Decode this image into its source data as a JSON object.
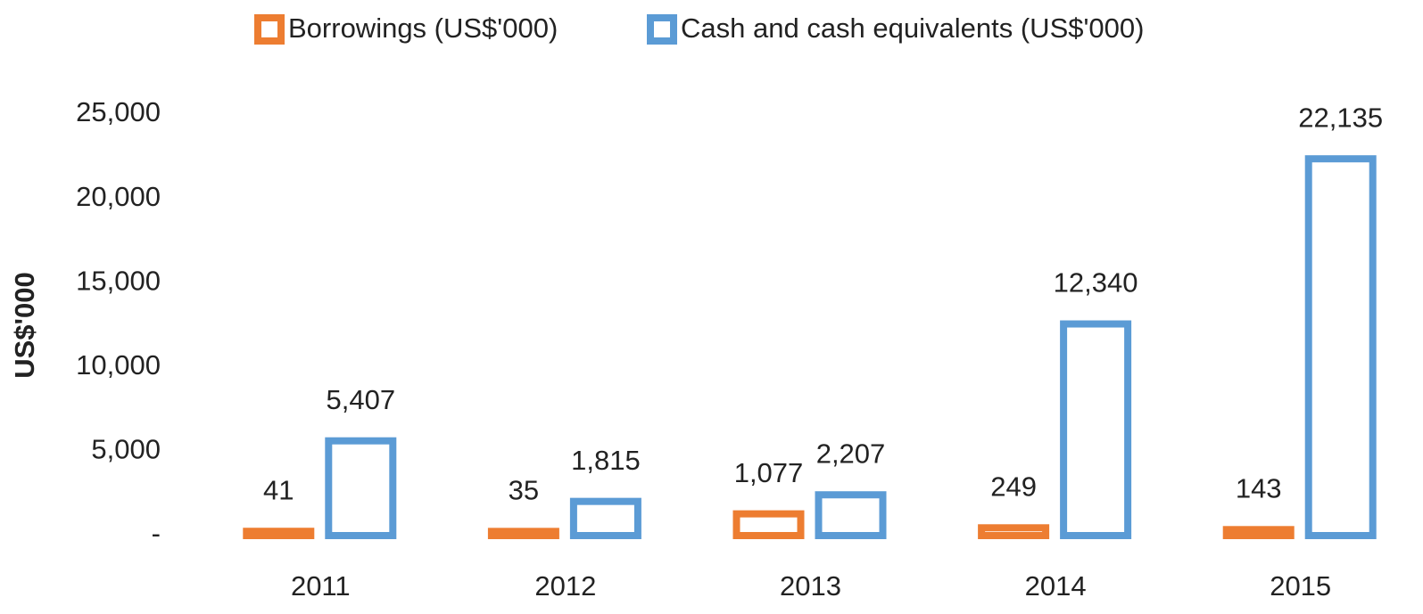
{
  "chart_data": {
    "type": "bar",
    "y_label": "US$'000",
    "categories": [
      "2011",
      "2012",
      "2013",
      "2014",
      "2015"
    ],
    "series": [
      {
        "name": "Borrowings (US$'000)",
        "color": "#ed7d31",
        "values": [
          41,
          35,
          1077,
          249,
          143
        ],
        "value_labels": [
          "41",
          "35",
          "1,077",
          "249",
          "143"
        ]
      },
      {
        "name": "Cash and cash equivalents (US$'000)",
        "color": "#5b9bd5",
        "values": [
          5407,
          1815,
          2207,
          12340,
          22135
        ],
        "value_labels": [
          "5,407",
          "1,815",
          "2,207",
          "12,340",
          "22,135"
        ]
      }
    ],
    "ylim": [
      0,
      25000
    ],
    "yticks": [
      {
        "value": 0,
        "label": "-"
      },
      {
        "value": 5000,
        "label": "5,000"
      },
      {
        "value": 10000,
        "label": "10,000"
      },
      {
        "value": 15000,
        "label": "15,000"
      },
      {
        "value": 20000,
        "label": "20,000"
      },
      {
        "value": 25000,
        "label": "25,000"
      }
    ],
    "grid": false,
    "legend": "top",
    "fill": "outline"
  }
}
